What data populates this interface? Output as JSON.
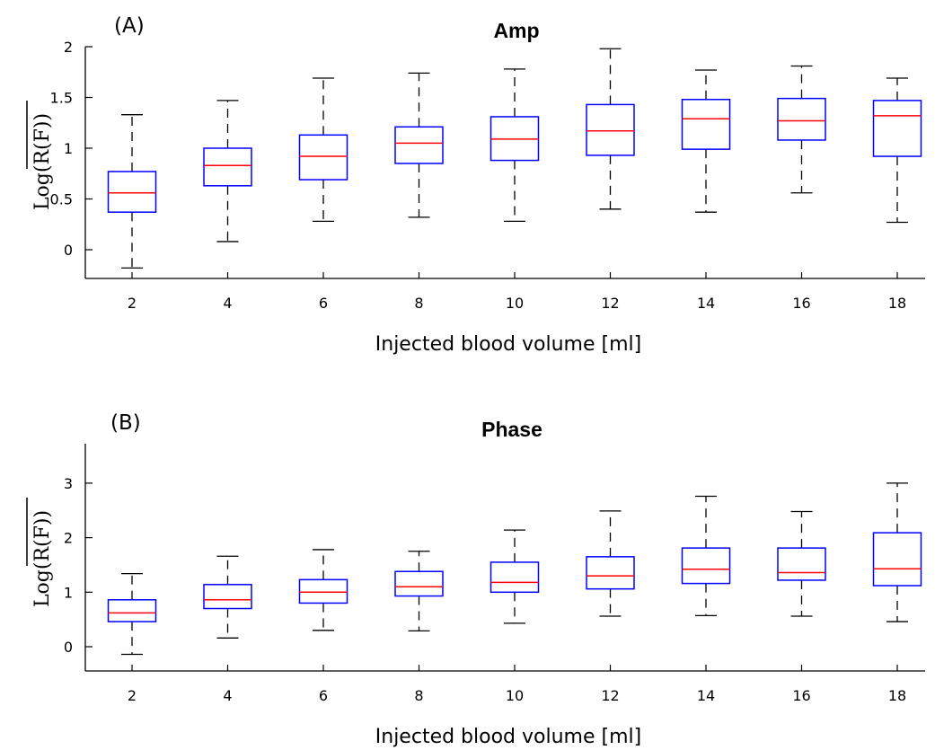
{
  "chart_data": [
    {
      "type": "box",
      "panel_label": "(A)",
      "title": "Amp",
      "xlabel": "Injected blood volume [ml]",
      "ylabel": "Log(R(F))",
      "ylabel_overline": true,
      "categories": [
        "2",
        "4",
        "6",
        "8",
        "10",
        "12",
        "14",
        "16",
        "18"
      ],
      "yticks": [
        "0",
        "0.5",
        "1",
        "1.5",
        "2"
      ],
      "ylim": [
        -0.3,
        2.0
      ],
      "series": [
        {
          "category": "2",
          "whisker_low": -0.18,
          "q1": 0.37,
          "median": 0.56,
          "q3": 0.77,
          "whisker_high": 1.33
        },
        {
          "category": "4",
          "whisker_low": 0.08,
          "q1": 0.63,
          "median": 0.83,
          "q3": 1.0,
          "whisker_high": 1.47
        },
        {
          "category": "6",
          "whisker_low": 0.28,
          "q1": 0.69,
          "median": 0.92,
          "q3": 1.13,
          "whisker_high": 1.69
        },
        {
          "category": "8",
          "whisker_low": 0.32,
          "q1": 0.85,
          "median": 1.05,
          "q3": 1.21,
          "whisker_high": 1.74
        },
        {
          "category": "10",
          "whisker_low": 0.28,
          "q1": 0.88,
          "median": 1.09,
          "q3": 1.31,
          "whisker_high": 1.78
        },
        {
          "category": "12",
          "whisker_low": 0.4,
          "q1": 0.93,
          "median": 1.17,
          "q3": 1.43,
          "whisker_high": 1.98
        },
        {
          "category": "14",
          "whisker_low": 0.37,
          "q1": 0.99,
          "median": 1.29,
          "q3": 1.48,
          "whisker_high": 1.77
        },
        {
          "category": "16",
          "whisker_low": 0.56,
          "q1": 1.08,
          "median": 1.27,
          "q3": 1.49,
          "whisker_high": 1.81
        },
        {
          "category": "18",
          "whisker_low": 0.27,
          "q1": 0.92,
          "median": 1.32,
          "q3": 1.47,
          "whisker_high": 1.69
        }
      ]
    },
    {
      "type": "box",
      "panel_label": "(B)",
      "title": "Phase",
      "xlabel": "Injected blood volume [ml]",
      "ylabel": "Log(R(F))",
      "ylabel_overline": true,
      "categories": [
        "2",
        "4",
        "6",
        "8",
        "10",
        "12",
        "14",
        "16",
        "18"
      ],
      "yticks": [
        "0",
        "1",
        "2",
        "3"
      ],
      "ylim": [
        -0.45,
        3.6
      ],
      "series": [
        {
          "category": "2",
          "whisker_low": -0.14,
          "q1": 0.46,
          "median": 0.62,
          "q3": 0.86,
          "whisker_high": 1.34
        },
        {
          "category": "4",
          "whisker_low": 0.16,
          "q1": 0.7,
          "median": 0.86,
          "q3": 1.14,
          "whisker_high": 1.66
        },
        {
          "category": "6",
          "whisker_low": 0.3,
          "q1": 0.8,
          "median": 1.0,
          "q3": 1.23,
          "whisker_high": 1.78
        },
        {
          "category": "8",
          "whisker_low": 0.29,
          "q1": 0.93,
          "median": 1.1,
          "q3": 1.38,
          "whisker_high": 1.75
        },
        {
          "category": "10",
          "whisker_low": 0.43,
          "q1": 1.0,
          "median": 1.18,
          "q3": 1.55,
          "whisker_high": 2.14
        },
        {
          "category": "12",
          "whisker_low": 0.56,
          "q1": 1.06,
          "median": 1.3,
          "q3": 1.65,
          "whisker_high": 2.49
        },
        {
          "category": "14",
          "whisker_low": 0.57,
          "q1": 1.16,
          "median": 1.42,
          "q3": 1.81,
          "whisker_high": 2.76
        },
        {
          "category": "16",
          "whisker_low": 0.56,
          "q1": 1.22,
          "median": 1.36,
          "q3": 1.81,
          "whisker_high": 2.48
        },
        {
          "category": "18",
          "whisker_low": 0.46,
          "q1": 1.12,
          "median": 1.43,
          "q3": 2.09,
          "whisker_high": 3.0
        }
      ]
    }
  ],
  "colors": {
    "box": "#0000ff",
    "median": "#ff0000",
    "whisker": "#000000",
    "axis": "#000000"
  }
}
